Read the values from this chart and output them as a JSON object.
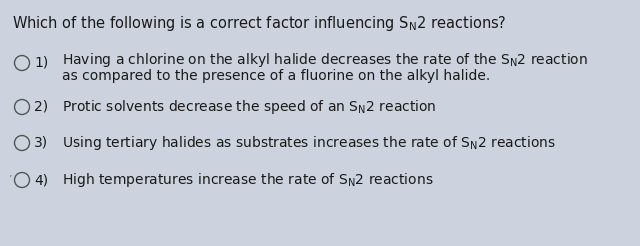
{
  "background_color": "#cdd3de",
  "title": "Which of the following is a correct factor influencing S$_\\mathrm{N}$2 reactions?",
  "title_fontsize": 10.5,
  "options": [
    {
      "number": "1)",
      "line1": "Having a chlorine on the alkyl halide decreases the rate of the S$_\\mathrm{N}$2 reaction",
      "line2": "as compared to the presence of a fluorine on the alkyl halide.",
      "two_lines": true
    },
    {
      "number": "2)",
      "line1": "Protic solvents decrease the speed of an S$_\\mathrm{N}$2 reaction",
      "line2": null,
      "two_lines": false
    },
    {
      "number": "3)",
      "line1": "Using tertiary halides as substrates increases the rate of S$_\\mathrm{N}$2 reactions",
      "line2": null,
      "two_lines": false
    },
    {
      "number": "4)",
      "line1": "High temperatures increase the rate of S$_\\mathrm{N}$2 reactions",
      "line2": null,
      "two_lines": false
    }
  ],
  "option_fontsize": 10.0,
  "text_color": "#1a1a1a",
  "circle_color": "#555555",
  "circle_linewidth": 1.0
}
